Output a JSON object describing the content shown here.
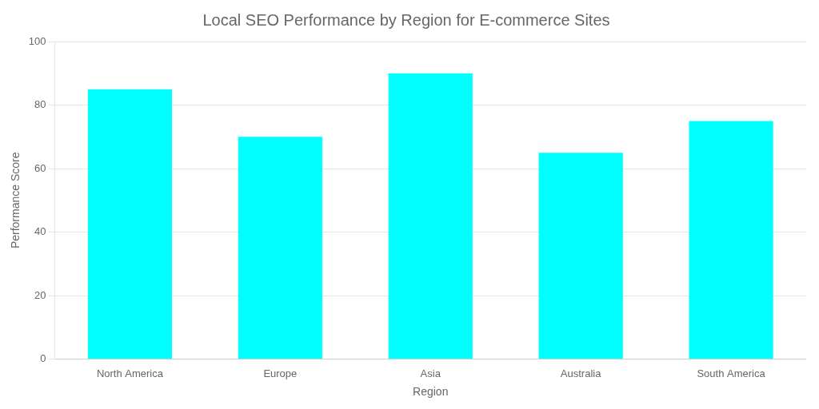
{
  "chart_data": {
    "type": "bar",
    "title": "Local SEO Performance by Region for E-commerce Sites",
    "xlabel": "Region",
    "ylabel": "Performance Score",
    "categories": [
      "North America",
      "Europe",
      "Asia",
      "Australia",
      "South America"
    ],
    "values": [
      85,
      70,
      90,
      65,
      75
    ],
    "color": "#00FFFF",
    "ylim": [
      0,
      100
    ],
    "yticks": [
      0,
      20,
      40,
      60,
      80,
      100
    ],
    "grid": true
  }
}
